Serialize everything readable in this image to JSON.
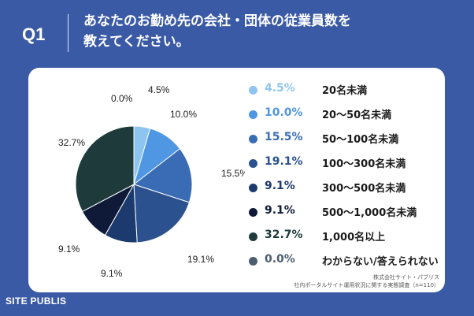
{
  "header": {
    "question_number": "Q1",
    "title_line1": "あなたのお勤め先の会社・団体の従業員数を",
    "title_line2": "教えてください。"
  },
  "chart_data": {
    "type": "pie",
    "title": "あなたのお勤め先の会社・団体の従業員数を教えてください。",
    "categories": [
      "20名未満",
      "20〜50名未満",
      "50〜100名未満",
      "100〜300名未満",
      "300〜500名未満",
      "500〜1,000名未満",
      "1,000名以上",
      "わからない/答えられない"
    ],
    "values": [
      4.5,
      10.0,
      15.5,
      19.1,
      9.1,
      9.1,
      32.7,
      0.0
    ],
    "value_labels": [
      "4.5%",
      "10.0%",
      "15.5%",
      "19.1%",
      "9.1%",
      "9.1%",
      "32.7%",
      "0.0%"
    ],
    "pie_labels": [
      "4.5%",
      "10.0%",
      "15.5%",
      "19.1%",
      "9.1%",
      "9.1%",
      "32.7%",
      "0.0%"
    ],
    "colors": [
      "#8ec5f0",
      "#4f97e3",
      "#3a6cb5",
      "#2b528f",
      "#1c3a6e",
      "#0e1a38",
      "#1e3a3a",
      "#4b5d70"
    ],
    "legend_position": "right"
  },
  "footer": {
    "source_line1": "株式会社サイト・パブリス",
    "source_line2": "社内ポータルサイト運用状況に関する実態調査（n=110）",
    "brand": "SITE PUBLIS"
  }
}
